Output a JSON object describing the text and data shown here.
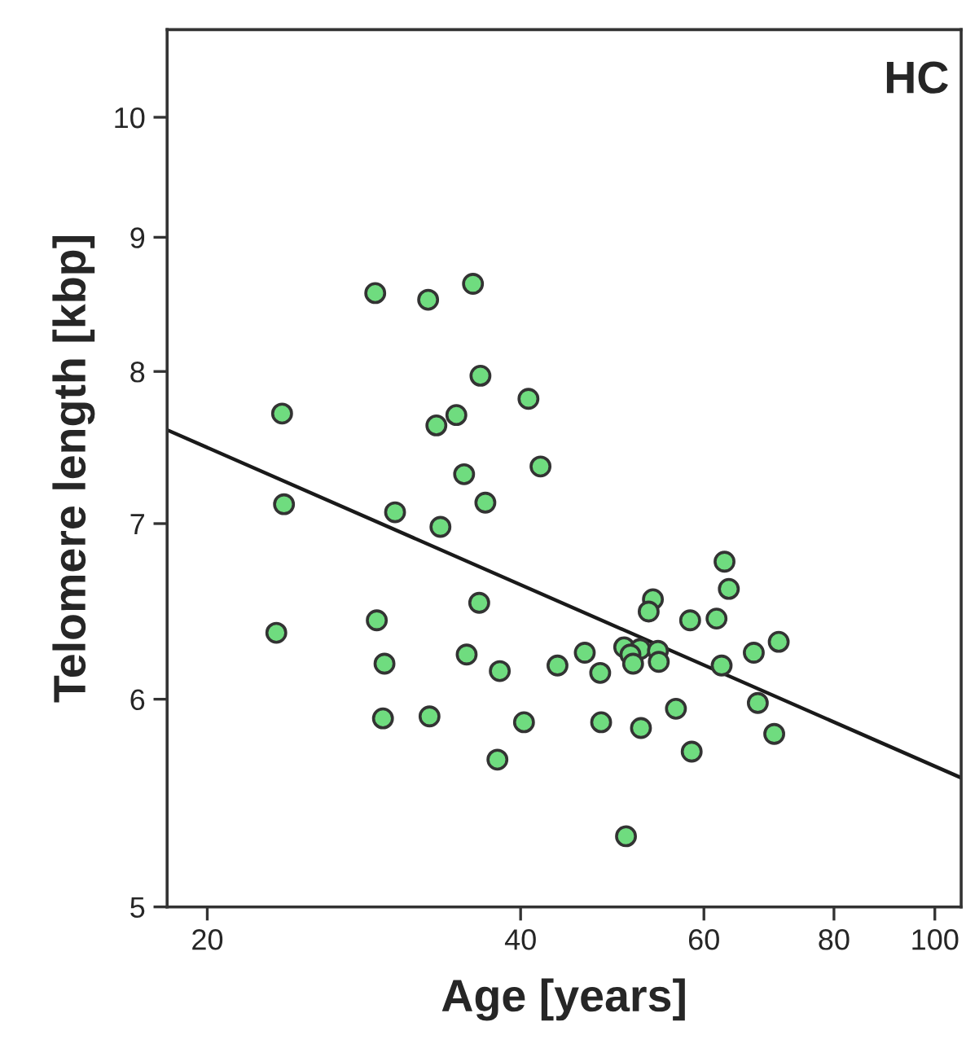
{
  "chart_data": {
    "type": "scatter",
    "xlabel": "Age [years]",
    "ylabel": "Telomere length [kbp]",
    "annotations": [
      "HC"
    ],
    "log": "xy",
    "grid": false,
    "xlim": [
      18.3,
      106
    ],
    "ylim": [
      5,
      10.8
    ],
    "xticks": [
      20,
      40,
      60,
      80,
      100
    ],
    "yticks": [
      5,
      6,
      7,
      8,
      9,
      10
    ],
    "series": [
      {
        "color": "#6fdc7f",
        "marker": "circle",
        "x": [
          29.0,
          32.6,
          36.0,
          36.6,
          40.7,
          23.6,
          34.7,
          33.2,
          35.3,
          41.8,
          23.7,
          37.0,
          30.3,
          33.5,
          62.8,
          63.4,
          36.5,
          53.6,
          53.1,
          29.1,
          58.2,
          61.7,
          23.3,
          70.8,
          67.0,
          35.5,
          46.1,
          50.3,
          52.1,
          54.2,
          51.0,
          29.6,
          43.4,
          51.3,
          54.3,
          62.4,
          38.2,
          47.7,
          67.6,
          56.4,
          29.5,
          32.7,
          40.3,
          47.8,
          52.2,
          58.4,
          70.1,
          38.0,
          50.5
        ],
        "values": [
          8.57,
          8.52,
          8.64,
          7.97,
          7.81,
          7.71,
          7.7,
          7.63,
          7.31,
          7.36,
          7.12,
          7.13,
          7.07,
          6.98,
          6.77,
          6.61,
          6.53,
          6.55,
          6.48,
          6.43,
          6.43,
          6.44,
          6.36,
          6.31,
          6.25,
          6.24,
          6.25,
          6.28,
          6.27,
          6.26,
          6.24,
          6.19,
          6.18,
          6.19,
          6.2,
          6.18,
          6.15,
          6.14,
          5.98,
          5.95,
          5.9,
          5.91,
          5.88,
          5.88,
          5.85,
          5.73,
          5.82,
          5.69,
          5.32
        ]
      },
      {
        "type": "line",
        "color": "#1a1a1a",
        "x": [
          18.3,
          106
        ],
        "values": [
          7.6,
          5.6
        ]
      }
    ]
  }
}
